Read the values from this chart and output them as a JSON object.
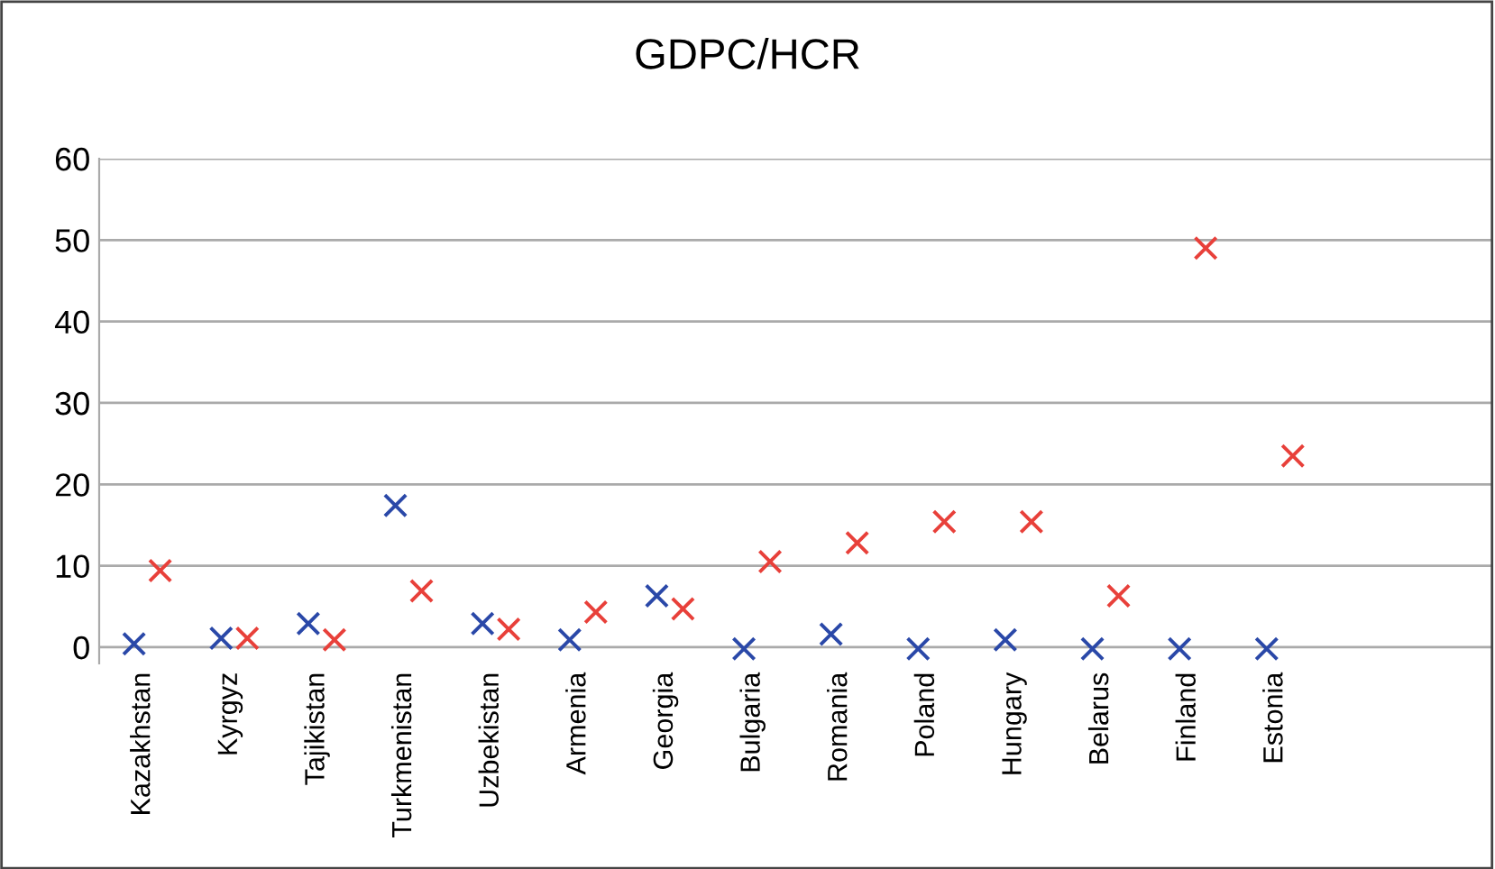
{
  "chart_data": {
    "type": "scatter",
    "title": "GDPC/HCR",
    "categories": [
      "Kazakhstan",
      "Kyrgyz",
      "Tajikistan",
      "Turkmenistan",
      "Uzbekistan",
      "Armenia",
      "Georgia",
      "Bulgaria",
      "Romania",
      "Poland",
      "Hungary",
      "Belarus",
      "Finland",
      "Estonia",
      null,
      null
    ],
    "series": [
      {
        "color": "#2a48a8",
        "values": [
          0.4,
          1.1,
          2.9,
          17.4,
          2.9,
          0.9,
          6.3,
          -0.2,
          1.6,
          -0.2,
          0.9,
          -0.2,
          -0.2,
          -0.2,
          null,
          null
        ]
      },
      {
        "color": "#e8403a",
        "values": [
          9.4,
          1.1,
          0.9,
          6.9,
          2.2,
          4.3,
          4.7,
          10.5,
          12.8,
          15.4,
          15.4,
          6.3,
          49,
          23.5,
          null,
          null
        ]
      }
    ],
    "ylim": [
      -2,
      60
    ],
    "yticks": [
      0,
      10,
      20,
      30,
      40,
      50,
      60
    ],
    "grid": "y",
    "marker": "cross",
    "legend": false
  }
}
